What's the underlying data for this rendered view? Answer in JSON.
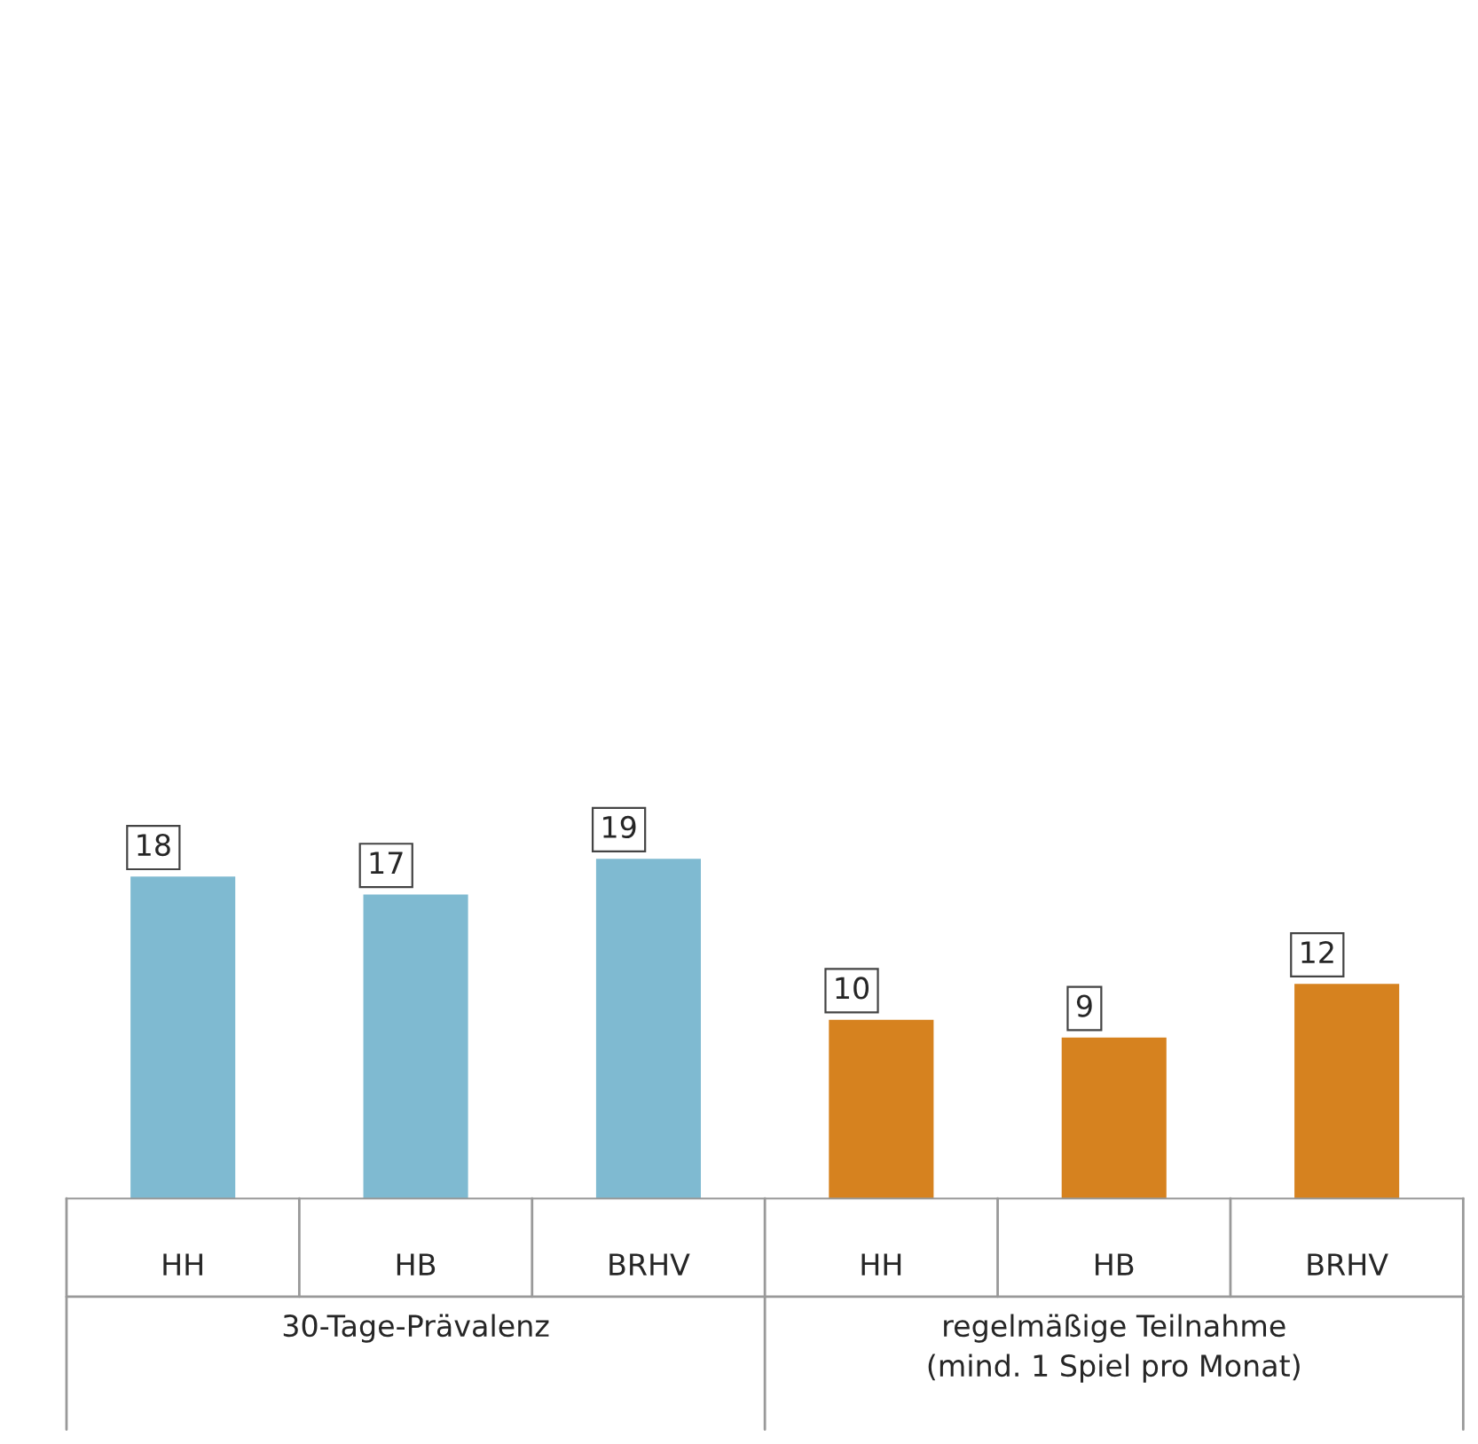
{
  "chart_data": {
    "type": "bar",
    "categories": [
      "HH",
      "HB",
      "BRHV",
      "HH",
      "HB",
      "BRHV"
    ],
    "values": [
      18,
      17,
      19,
      10,
      9,
      12
    ],
    "colors": [
      "#7fbad1",
      "#7fbad1",
      "#7fbad1",
      "#d6821f",
      "#d6821f",
      "#d6821f"
    ],
    "data_labels": true,
    "annotations": [
      "30-Tage-Prävalenz",
      "regelmäßige Teilnahme\n(mind. 1 Spiel pro Monat)"
    ]
  }
}
